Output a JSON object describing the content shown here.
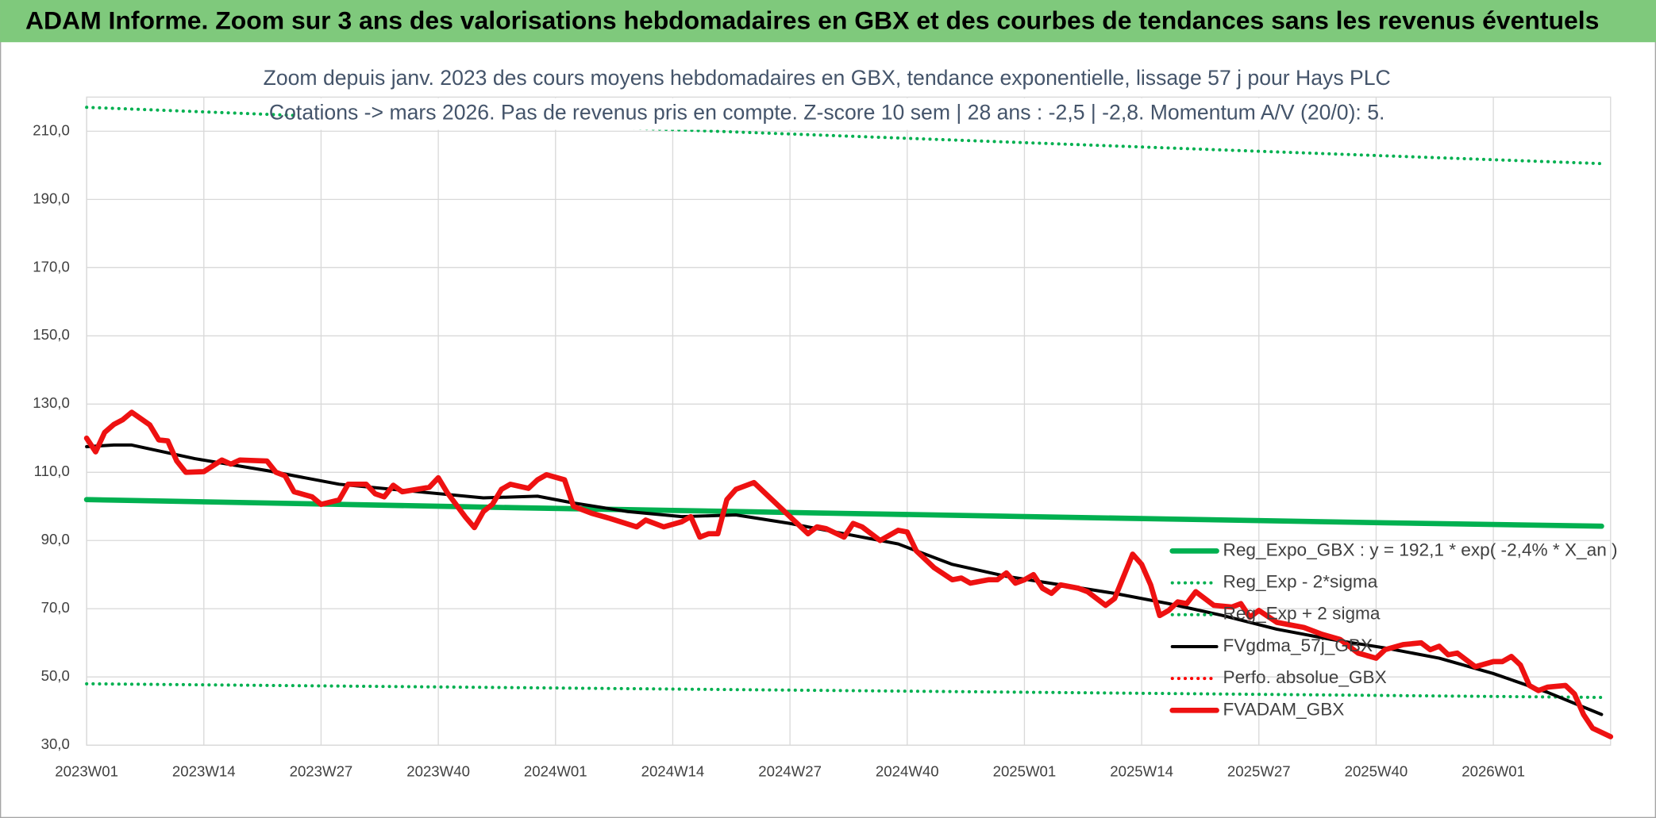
{
  "chart_data": {
    "type": "line",
    "header": "ADAM Informe. Zoom sur 3 ans des valorisations hebdomadaires en GBX et des courbes de tendances sans les revenus éventuels",
    "title": "Zoom depuis janv. 2023 des cours moyens hebdomadaires en GBX, tendance exponentielle, lissage 57 j pour Hays PLC",
    "subtitle": "Cotations -> mars 2026. Pas de revenus pris en compte. Z-score 10 sem | 28 ans : -2,5 | -2,8. Momentum A/V (20/0): 5.",
    "xlim": [
      0,
      169
    ],
    "xticks": [
      {
        "value": 0,
        "label": "2023W01"
      },
      {
        "value": 13,
        "label": "2023W14"
      },
      {
        "value": 26,
        "label": "2023W27"
      },
      {
        "value": 39,
        "label": "2023W40"
      },
      {
        "value": 52,
        "label": "2024W01"
      },
      {
        "value": 65,
        "label": "2024W14"
      },
      {
        "value": 78,
        "label": "2024W27"
      },
      {
        "value": 91,
        "label": "2024W40"
      },
      {
        "value": 104,
        "label": "2025W01"
      },
      {
        "value": 117,
        "label": "2025W14"
      },
      {
        "value": 130,
        "label": "2025W27"
      },
      {
        "value": 143,
        "label": "2025W40"
      },
      {
        "value": 156,
        "label": "2026W01"
      }
    ],
    "ylim": [
      30,
      220
    ],
    "yticks": [
      {
        "value": 30,
        "label": "30,0"
      },
      {
        "value": 50,
        "label": "50,0"
      },
      {
        "value": 70,
        "label": "70,0"
      },
      {
        "value": 90,
        "label": "90,0"
      },
      {
        "value": 110,
        "label": "110,0"
      },
      {
        "value": 130,
        "label": "130,0"
      },
      {
        "value": 150,
        "label": "150,0"
      },
      {
        "value": 170,
        "label": "170,0"
      },
      {
        "value": 190,
        "label": "190,0"
      },
      {
        "value": 210,
        "label": "210,0"
      }
    ],
    "grid": true,
    "legend": "right",
    "series": [
      {
        "name": "Reg_Expo_GBX : y = 192,1 * exp( -2,4% *  X_an )",
        "color": "#00b050",
        "style": "thick",
        "x": [
          0,
          24,
          48,
          72,
          96,
          120,
          144,
          168
        ],
        "values": [
          102,
          100.8,
          99.6,
          98.5,
          97.4,
          96.3,
          95.2,
          94.2
        ]
      },
      {
        "name": "Reg_Exp - 2*sigma",
        "color": "#00b050",
        "style": "dotted",
        "x": [
          0,
          42,
          84,
          126,
          168
        ],
        "values": [
          48,
          47,
          46,
          45,
          44
        ]
      },
      {
        "name": "Reg_Exp + 2 sigma",
        "color": "#00b050",
        "style": "dotted",
        "x": [
          0,
          42,
          84,
          126,
          168
        ],
        "values": [
          217,
          212.7,
          208.6,
          204.5,
          200.5
        ]
      },
      {
        "name": "FVgdma_57j_GBX",
        "color": "#000000",
        "style": "thin",
        "x": [
          0,
          3,
          5,
          12,
          20,
          28,
          36,
          44,
          50,
          54,
          60,
          66,
          72,
          78,
          84,
          90,
          96,
          102,
          108,
          114,
          120,
          126,
          132,
          138,
          144,
          150,
          156,
          162,
          168
        ],
        "values": [
          117.5,
          118,
          118,
          114,
          110.5,
          106.5,
          104.5,
          102.5,
          103,
          101,
          98.5,
          97,
          97.5,
          95,
          92,
          89,
          83,
          79.5,
          77,
          74.5,
          71.5,
          68,
          64,
          61,
          58.5,
          55.5,
          51,
          45.5,
          39
        ]
      },
      {
        "name": "Perfo. absolue_GBX",
        "color": "#ff0000",
        "style": "dotted"
      },
      {
        "name": "FVADAM_GBX",
        "color": "#ee1111",
        "style": "thick",
        "x": [
          0,
          1,
          2,
          3,
          4,
          5,
          7,
          8,
          9,
          10,
          11,
          13,
          15,
          16,
          17,
          20,
          21,
          22,
          23,
          25,
          26,
          28,
          29,
          31,
          32,
          33,
          34,
          35,
          38,
          39,
          40,
          42,
          43,
          44,
          45,
          46,
          47,
          49,
          50,
          51,
          53,
          54,
          56,
          58,
          61,
          62,
          64,
          66,
          67,
          68,
          69,
          70,
          71,
          72,
          74,
          76,
          78,
          80,
          81,
          82,
          84,
          85,
          86,
          88,
          90,
          91,
          92,
          94,
          96,
          97,
          98,
          100,
          101,
          102,
          103,
          104,
          105,
          106,
          107,
          108,
          110,
          111,
          113,
          114,
          116,
          117,
          118,
          119,
          120,
          121,
          122,
          123,
          125,
          127,
          128,
          129,
          130,
          132,
          135,
          137,
          139,
          141,
          143,
          144,
          146,
          148,
          149,
          150,
          151,
          152,
          154,
          156,
          157,
          158,
          159,
          160,
          161,
          162,
          164,
          165,
          166,
          167,
          169
        ],
        "values": [
          120,
          116,
          121.7,
          124,
          125.4,
          127.6,
          123.9,
          119.5,
          119.2,
          113.3,
          110,
          110.2,
          113.6,
          112.4,
          113.6,
          113.3,
          110,
          109,
          104.3,
          102.8,
          100.6,
          101.9,
          106.5,
          106.5,
          103.7,
          102.8,
          106.2,
          104.3,
          105.6,
          108.4,
          104,
          96.9,
          93.8,
          98.5,
          100.6,
          105,
          106.5,
          105.3,
          107.8,
          109.3,
          107.8,
          100,
          98,
          96.5,
          94,
          96,
          94,
          95.5,
          97,
          91,
          92,
          92,
          102,
          105,
          107,
          102,
          97,
          92,
          94,
          93.5,
          91,
          95,
          94,
          90,
          93,
          92.5,
          87,
          82,
          78.5,
          79,
          77.5,
          78.5,
          78.5,
          80.5,
          77.5,
          78.5,
          80,
          76,
          74.5,
          77,
          76,
          75,
          71,
          73,
          86,
          83,
          77,
          68,
          69.5,
          72,
          71.5,
          75,
          71,
          70.5,
          71.5,
          67.5,
          69.5,
          66,
          64.5,
          62.5,
          61,
          57,
          55.5,
          58,
          59.5,
          60,
          58,
          59,
          56.5,
          57,
          53,
          54.5,
          54.5,
          56,
          53.5,
          47.5,
          46,
          47,
          47.5,
          45,
          39,
          35,
          32.5
        ]
      }
    ]
  }
}
